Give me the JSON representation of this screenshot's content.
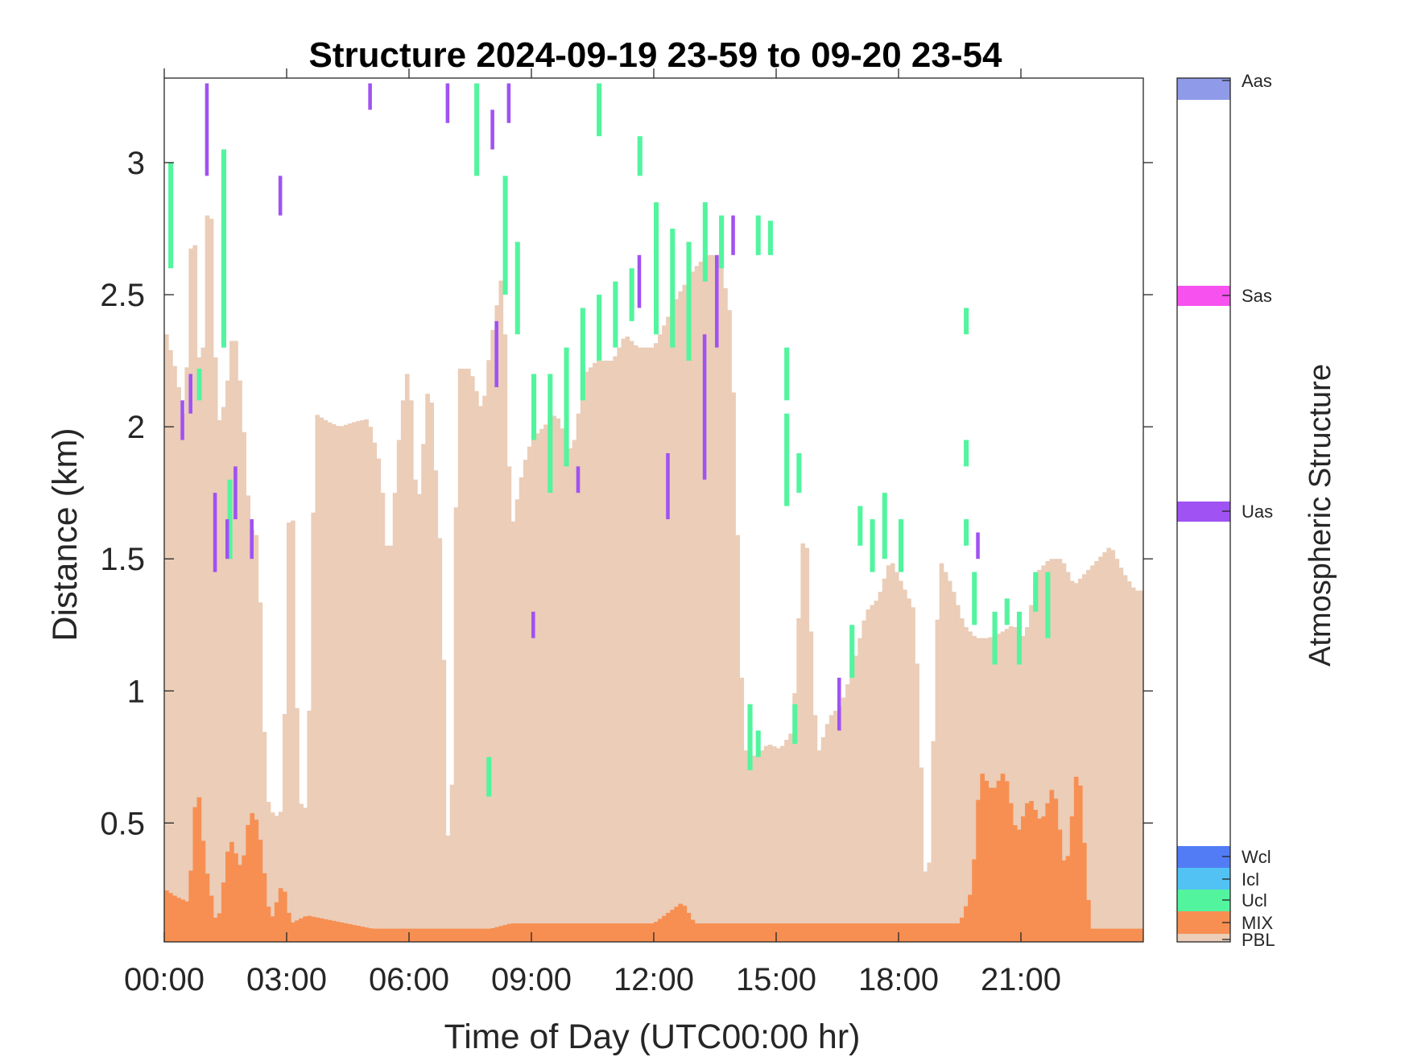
{
  "chart_data": {
    "type": "heatmap",
    "title": "Structure 2024-09-19 23-59 to 09-20 23-54",
    "xlabel": "Time of Day (UTC00:00 hr)",
    "ylabel": "Distance (km)",
    "colorbar_title": "Atmospheric Structure",
    "x_unit": "hours",
    "xlim": [
      0,
      24
    ],
    "ylim": [
      0.05,
      3.32
    ],
    "xticks": [
      0,
      3,
      6,
      9,
      12,
      15,
      18,
      21
    ],
    "xtick_labels": [
      "00:00",
      "03:00",
      "06:00",
      "09:00",
      "12:00",
      "15:00",
      "18:00",
      "21:00"
    ],
    "yticks": [
      0.5,
      1,
      1.5,
      2,
      2.5,
      3
    ],
    "ytick_labels": [
      "0.5",
      "1",
      "1.5",
      "2",
      "2.5",
      "3"
    ],
    "categories": [
      {
        "label": "Aas",
        "color": "#8f9ae8"
      },
      {
        "label": "Sas",
        "color": "#f752ef"
      },
      {
        "label": "Uas",
        "color": "#a052f2"
      },
      {
        "label": "Wcl",
        "color": "#527cf5"
      },
      {
        "label": "Icl",
        "color": "#52c2f5"
      },
      {
        "label": "Ucl",
        "color": "#52f59e"
      },
      {
        "label": "MIX",
        "color": "#f78f52"
      },
      {
        "label": "PBL",
        "color": "#ebcdb8"
      }
    ],
    "background": "#ffffff",
    "pbl_top": [
      [
        0.0,
        2.38
      ],
      [
        0.3,
        2.2
      ],
      [
        0.5,
        2.0
      ],
      [
        0.7,
        2.9
      ],
      [
        0.9,
        2.05
      ],
      [
        1.1,
        3.05
      ],
      [
        1.3,
        2.0
      ],
      [
        1.5,
        2.1
      ],
      [
        1.7,
        2.4
      ],
      [
        1.9,
        2.1
      ],
      [
        2.1,
        1.62
      ],
      [
        2.3,
        1.58
      ],
      [
        2.5,
        0.6
      ],
      [
        2.7,
        0.52
      ],
      [
        2.9,
        0.55
      ],
      [
        3.1,
        2.0
      ],
      [
        3.3,
        0.58
      ],
      [
        3.5,
        0.55
      ],
      [
        3.7,
        2.05
      ],
      [
        4.0,
        2.02
      ],
      [
        4.3,
        2.0
      ],
      [
        4.7,
        2.02
      ],
      [
        5.0,
        2.03
      ],
      [
        5.3,
        1.85
      ],
      [
        5.5,
        1.45
      ],
      [
        5.8,
        2.05
      ],
      [
        6.0,
        2.25
      ],
      [
        6.2,
        1.65
      ],
      [
        6.5,
        2.22
      ],
      [
        6.8,
        1.45
      ],
      [
        7.0,
        0.12
      ],
      [
        7.2,
        2.22
      ],
      [
        7.5,
        2.22
      ],
      [
        7.8,
        2.05
      ],
      [
        8.0,
        2.32
      ],
      [
        8.3,
        2.6
      ],
      [
        8.5,
        1.6
      ],
      [
        8.8,
        1.85
      ],
      [
        9.0,
        1.95
      ],
      [
        9.3,
        2.0
      ],
      [
        9.6,
        2.05
      ],
      [
        10.0,
        1.9
      ],
      [
        10.3,
        2.2
      ],
      [
        10.6,
        2.25
      ],
      [
        11.0,
        2.25
      ],
      [
        11.3,
        2.35
      ],
      [
        11.6,
        2.3
      ],
      [
        12.0,
        2.3
      ],
      [
        12.3,
        2.4
      ],
      [
        12.6,
        2.5
      ],
      [
        13.0,
        2.6
      ],
      [
        13.3,
        2.65
      ],
      [
        13.6,
        2.65
      ],
      [
        13.9,
        2.4
      ],
      [
        14.2,
        0.78
      ],
      [
        14.5,
        0.75
      ],
      [
        14.8,
        0.8
      ],
      [
        15.1,
        0.78
      ],
      [
        15.4,
        0.85
      ],
      [
        15.7,
        1.7
      ],
      [
        16.0,
        0.75
      ],
      [
        16.3,
        0.9
      ],
      [
        16.6,
        0.95
      ],
      [
        16.9,
        1.1
      ],
      [
        17.2,
        1.3
      ],
      [
        17.5,
        1.35
      ],
      [
        17.8,
        1.5
      ],
      [
        18.1,
        1.4
      ],
      [
        18.4,
        1.3
      ],
      [
        18.7,
        0.12
      ],
      [
        19.0,
        1.5
      ],
      [
        19.3,
        1.4
      ],
      [
        19.6,
        1.25
      ],
      [
        19.9,
        1.2
      ],
      [
        20.2,
        1.2
      ],
      [
        20.5,
        1.22
      ],
      [
        20.8,
        1.25
      ],
      [
        21.1,
        1.2
      ],
      [
        21.4,
        1.45
      ],
      [
        21.7,
        1.5
      ],
      [
        22.0,
        1.5
      ],
      [
        22.3,
        1.4
      ],
      [
        22.6,
        1.45
      ],
      [
        22.9,
        1.5
      ],
      [
        23.2,
        1.55
      ],
      [
        23.5,
        1.45
      ],
      [
        23.8,
        1.38
      ]
    ],
    "mix_top": [
      [
        0.0,
        0.25
      ],
      [
        0.3,
        0.22
      ],
      [
        0.6,
        0.2
      ],
      [
        0.8,
        0.68
      ],
      [
        1.0,
        0.35
      ],
      [
        1.3,
        0.1
      ],
      [
        1.6,
        0.45
      ],
      [
        1.9,
        0.32
      ],
      [
        2.1,
        0.55
      ],
      [
        2.3,
        0.5
      ],
      [
        2.6,
        0.12
      ],
      [
        2.9,
        0.28
      ],
      [
        3.1,
        0.12
      ],
      [
        3.5,
        0.15
      ],
      [
        5.1,
        0.1
      ],
      [
        8.0,
        0.1
      ],
      [
        8.5,
        0.12
      ],
      [
        9.0,
        0.12
      ],
      [
        10.0,
        0.12
      ],
      [
        11.0,
        0.12
      ],
      [
        12.0,
        0.12
      ],
      [
        12.7,
        0.2
      ],
      [
        13.0,
        0.12
      ],
      [
        14.0,
        0.12
      ],
      [
        15.0,
        0.12
      ],
      [
        16.0,
        0.12
      ],
      [
        17.0,
        0.12
      ],
      [
        18.0,
        0.12
      ],
      [
        19.5,
        0.12
      ],
      [
        19.8,
        0.25
      ],
      [
        20.0,
        0.7
      ],
      [
        20.3,
        0.62
      ],
      [
        20.6,
        0.7
      ],
      [
        20.9,
        0.45
      ],
      [
        21.2,
        0.6
      ],
      [
        21.5,
        0.5
      ],
      [
        21.8,
        0.65
      ],
      [
        22.1,
        0.3
      ],
      [
        22.4,
        0.75
      ],
      [
        22.7,
        0.1
      ]
    ],
    "ucl_segments": [
      [
        0.1,
        2.6,
        3.0
      ],
      [
        0.8,
        2.1,
        2.22
      ],
      [
        1.4,
        2.3,
        3.05
      ],
      [
        1.55,
        1.5,
        1.8
      ],
      [
        7.6,
        2.95,
        3.3
      ],
      [
        7.9,
        0.6,
        0.75
      ],
      [
        8.3,
        2.5,
        2.95
      ],
      [
        8.6,
        2.35,
        2.7
      ],
      [
        9.0,
        1.95,
        2.2
      ],
      [
        9.4,
        1.75,
        2.2
      ],
      [
        9.8,
        1.85,
        2.3
      ],
      [
        10.2,
        2.1,
        2.45
      ],
      [
        10.6,
        2.25,
        2.5
      ],
      [
        10.6,
        3.1,
        3.3
      ],
      [
        11.0,
        2.3,
        2.55
      ],
      [
        11.4,
        2.4,
        2.6
      ],
      [
        11.6,
        2.95,
        3.1
      ],
      [
        12.0,
        2.35,
        2.85
      ],
      [
        12.4,
        2.3,
        2.75
      ],
      [
        12.8,
        2.25,
        2.7
      ],
      [
        13.2,
        2.55,
        2.85
      ],
      [
        13.6,
        2.6,
        2.8
      ],
      [
        14.5,
        2.65,
        2.8
      ],
      [
        14.8,
        2.65,
        2.78
      ],
      [
        15.2,
        1.7,
        2.05
      ],
      [
        15.5,
        1.75,
        1.9
      ],
      [
        15.2,
        2.1,
        2.3
      ],
      [
        14.3,
        0.7,
        0.95
      ],
      [
        14.5,
        0.75,
        0.85
      ],
      [
        15.4,
        0.8,
        0.95
      ],
      [
        16.8,
        1.05,
        1.25
      ],
      [
        17.0,
        1.55,
        1.7
      ],
      [
        17.3,
        1.45,
        1.65
      ],
      [
        17.6,
        1.5,
        1.75
      ],
      [
        18.0,
        1.45,
        1.65
      ],
      [
        19.6,
        2.35,
        2.45
      ],
      [
        19.6,
        1.85,
        1.95
      ],
      [
        19.6,
        1.55,
        1.65
      ],
      [
        19.8,
        1.25,
        1.45
      ],
      [
        20.3,
        1.1,
        1.3
      ],
      [
        20.6,
        1.25,
        1.35
      ],
      [
        20.9,
        1.1,
        1.3
      ],
      [
        21.3,
        1.3,
        1.45
      ],
      [
        21.6,
        1.2,
        1.45
      ]
    ],
    "uas_segments": [
      [
        0.4,
        1.95,
        2.1
      ],
      [
        0.6,
        2.05,
        2.2
      ],
      [
        1.0,
        2.95,
        3.3
      ],
      [
        1.2,
        1.45,
        1.75
      ],
      [
        1.5,
        1.5,
        1.65
      ],
      [
        1.7,
        1.65,
        1.85
      ],
      [
        2.1,
        1.5,
        1.65
      ],
      [
        2.8,
        2.8,
        2.95
      ],
      [
        5.0,
        3.2,
        3.3
      ],
      [
        6.9,
        3.15,
        3.3
      ],
      [
        8.1,
        2.15,
        2.4
      ],
      [
        8.0,
        3.05,
        3.2
      ],
      [
        8.4,
        3.15,
        3.3
      ],
      [
        9.0,
        1.2,
        1.3
      ],
      [
        10.1,
        1.75,
        1.85
      ],
      [
        11.6,
        2.45,
        2.65
      ],
      [
        12.3,
        1.65,
        1.9
      ],
      [
        13.2,
        1.8,
        2.35
      ],
      [
        13.5,
        2.3,
        2.65
      ],
      [
        13.9,
        2.65,
        2.8
      ],
      [
        16.5,
        0.85,
        1.05
      ],
      [
        19.9,
        1.5,
        1.6
      ]
    ]
  }
}
